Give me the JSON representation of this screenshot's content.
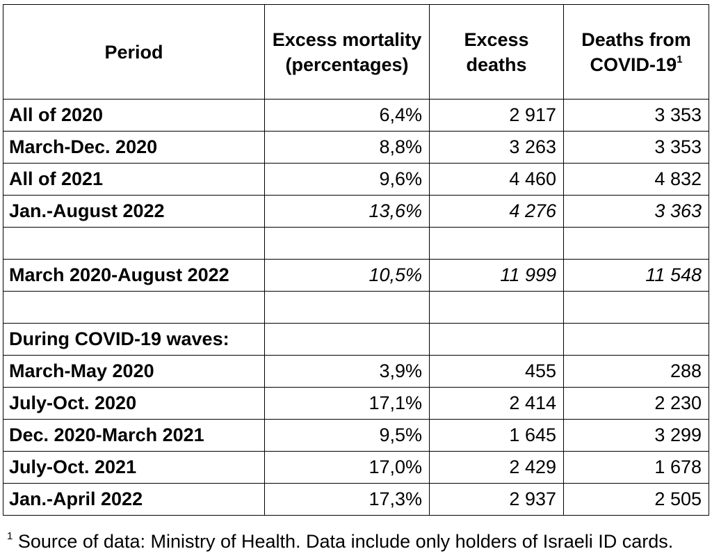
{
  "table": {
    "headers": {
      "period": "Period",
      "excess_mortality": "Excess mortality (percentages)",
      "excess_deaths": "Excess deaths",
      "covid_deaths": "Deaths from COVID-19",
      "covid_deaths_note": "1"
    },
    "rows": [
      {
        "period": "All of 2020",
        "excess_mortality": "6,4%",
        "excess_deaths": "2 917",
        "covid_deaths": "3 353"
      },
      {
        "period": "March-Dec. 2020",
        "excess_mortality": "8,8%",
        "excess_deaths": "3 263",
        "covid_deaths": "3 353"
      },
      {
        "period": "All of 2021",
        "excess_mortality": "9,6%",
        "excess_deaths": "4 460",
        "covid_deaths": "4 832"
      },
      {
        "period": "Jan.-August 2022",
        "excess_mortality": "13,6%",
        "excess_deaths": "4 276",
        "covid_deaths": "3 363"
      },
      {
        "period": "",
        "excess_mortality": "",
        "excess_deaths": "",
        "covid_deaths": ""
      },
      {
        "period": "March 2020-August 2022",
        "excess_mortality": "10,5%",
        "excess_deaths": "11 999",
        "covid_deaths": "11 548"
      },
      {
        "period": "",
        "excess_mortality": "",
        "excess_deaths": "",
        "covid_deaths": ""
      },
      {
        "period": "During COVID-19 waves:",
        "excess_mortality": "",
        "excess_deaths": "",
        "covid_deaths": ""
      },
      {
        "period": "March-May 2020",
        "excess_mortality": "3,9%",
        "excess_deaths": "455",
        "covid_deaths": "288"
      },
      {
        "period": "July-Oct. 2020",
        "excess_mortality": "17,1%",
        "excess_deaths": "2 414",
        "covid_deaths": "2 230"
      },
      {
        "period": "Dec. 2020-March 2021",
        "excess_mortality": "9,5%",
        "excess_deaths": "1 645",
        "covid_deaths": "3 299"
      },
      {
        "period": "July-Oct. 2021",
        "excess_mortality": "17,0%",
        "excess_deaths": "2 429",
        "covid_deaths": "1 678"
      },
      {
        "period": "Jan.-April 2022",
        "excess_mortality": "17,3%",
        "excess_deaths": "2 937",
        "covid_deaths": "2 505"
      }
    ]
  },
  "footnote": {
    "marker": "1",
    "text": " Source of data: Ministry of Health. Data include only holders of Israeli ID cards."
  }
}
